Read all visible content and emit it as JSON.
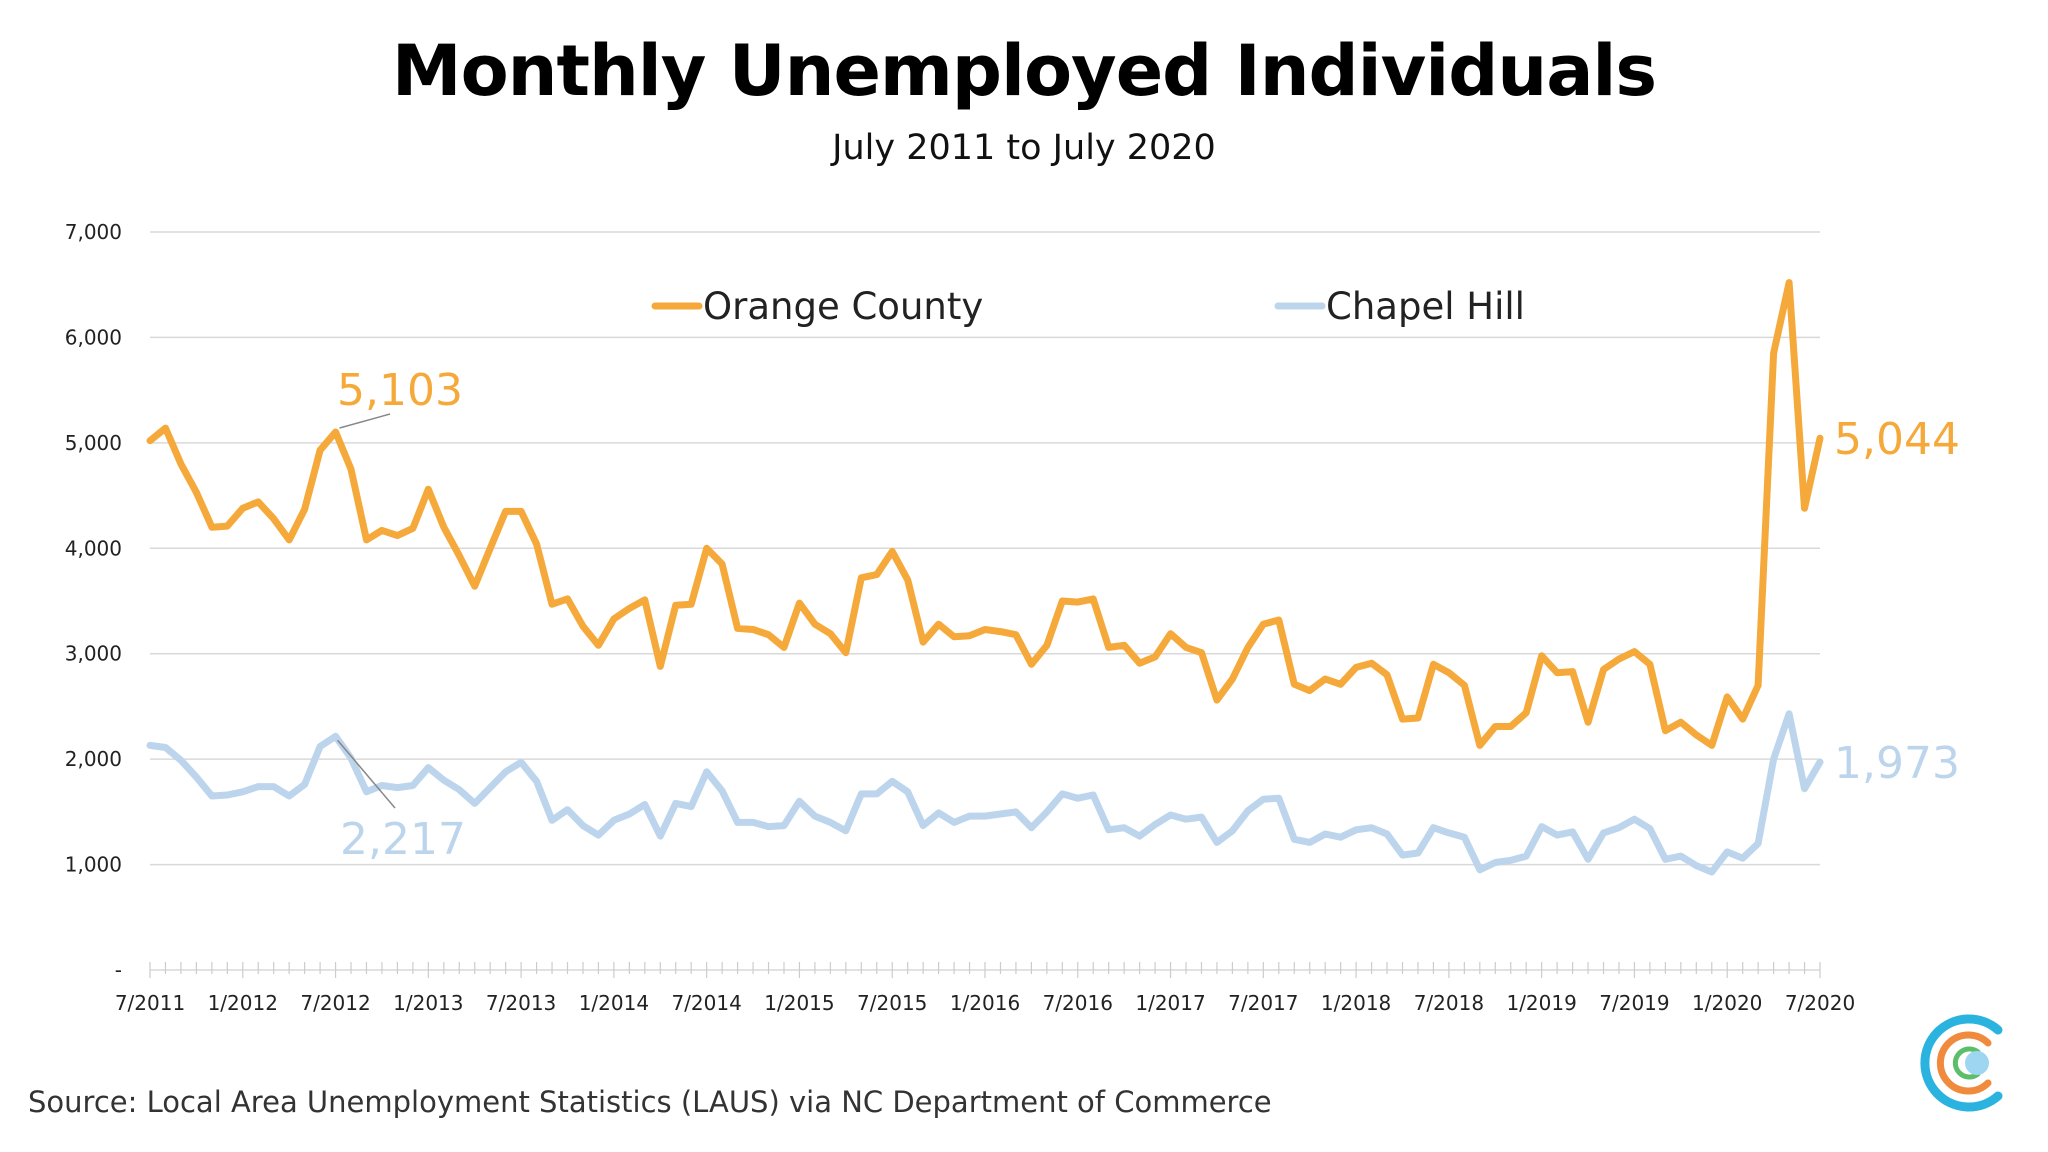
{
  "title": "Monthly Unemployed Individuals",
  "subtitle": "July 2011 to July 2020",
  "source": "Source: Local Area Unemployment Statistics (LAUS) via NC Department of Commerce",
  "colors": {
    "orange_county": "#F5A93A",
    "chapel_hill": "#BDD5EC",
    "grid": "#D9D9D9"
  },
  "logo": {
    "icon": "circular-logo-icon"
  },
  "chart_data": {
    "type": "line",
    "ylim": [
      0,
      7000
    ],
    "yticks": [
      0,
      1000,
      2000,
      3000,
      4000,
      5000,
      6000,
      7000
    ],
    "ytick_labels": [
      "-",
      "1,000",
      "2,000",
      "3,000",
      "4,000",
      "5,000",
      "6,000",
      "7,000"
    ],
    "xtick_labels": [
      "7/2011",
      "1/2012",
      "7/2012",
      "1/2013",
      "7/2013",
      "1/2014",
      "7/2014",
      "1/2015",
      "7/2015",
      "1/2016",
      "7/2016",
      "1/2017",
      "7/2017",
      "1/2018",
      "7/2018",
      "1/2019",
      "7/2019",
      "1/2020",
      "7/2020"
    ],
    "x_start": "7/2011",
    "x_end": "7/2020",
    "grid": true,
    "legend_position": "top",
    "series": [
      {
        "name": "Orange County",
        "values": [
          5020,
          5140,
          4800,
          4530,
          4200,
          4210,
          4380,
          4440,
          4280,
          4080,
          4370,
          4930,
          5103,
          4750,
          4080,
          4170,
          4120,
          4190,
          4560,
          4200,
          3930,
          3640,
          4000,
          4350,
          4350,
          4040,
          3470,
          3520,
          3260,
          3080,
          3330,
          3430,
          3510,
          2880,
          3460,
          3470,
          4000,
          3850,
          3240,
          3230,
          3180,
          3060,
          3480,
          3280,
          3190,
          3010,
          3720,
          3750,
          3970,
          3700,
          3110,
          3280,
          3160,
          3170,
          3230,
          3210,
          3180,
          2900,
          3080,
          3500,
          3490,
          3520,
          3060,
          3080,
          2910,
          2970,
          3190,
          3060,
          3010,
          2560,
          2760,
          3060,
          3280,
          3320,
          2710,
          2650,
          2760,
          2710,
          2870,
          2910,
          2800,
          2380,
          2390,
          2900,
          2820,
          2700,
          2130,
          2310,
          2310,
          2440,
          2980,
          2820,
          2830,
          2350,
          2850,
          2950,
          3020,
          2900,
          2270,
          2350,
          2230,
          2130,
          2590,
          2380,
          2700,
          5850,
          6520,
          4380,
          5044
        ]
      },
      {
        "name": "Chapel Hill",
        "values": [
          2130,
          2110,
          1990,
          1830,
          1650,
          1660,
          1690,
          1740,
          1740,
          1650,
          1760,
          2120,
          2217,
          2010,
          1690,
          1750,
          1730,
          1750,
          1920,
          1800,
          1710,
          1580,
          1730,
          1880,
          1970,
          1790,
          1420,
          1520,
          1370,
          1280,
          1420,
          1480,
          1570,
          1270,
          1580,
          1550,
          1880,
          1700,
          1400,
          1400,
          1360,
          1370,
          1600,
          1460,
          1400,
          1320,
          1670,
          1670,
          1790,
          1690,
          1370,
          1490,
          1400,
          1460,
          1460,
          1480,
          1500,
          1350,
          1500,
          1670,
          1630,
          1660,
          1330,
          1350,
          1270,
          1380,
          1470,
          1430,
          1450,
          1210,
          1320,
          1510,
          1620,
          1630,
          1240,
          1210,
          1290,
          1260,
          1330,
          1350,
          1290,
          1090,
          1110,
          1350,
          1300,
          1260,
          950,
          1020,
          1040,
          1080,
          1360,
          1280,
          1310,
          1050,
          1300,
          1350,
          1430,
          1340,
          1050,
          1080,
          990,
          930,
          1120,
          1060,
          1200,
          2000,
          2430,
          1720,
          1973
        ]
      }
    ],
    "annotations": [
      {
        "text": "5,103",
        "series": "Orange County"
      },
      {
        "text": "2,217",
        "series": "Chapel Hill"
      },
      {
        "text": "5,044",
        "series": "Orange County"
      },
      {
        "text": "1,973",
        "series": "Chapel Hill"
      }
    ]
  }
}
